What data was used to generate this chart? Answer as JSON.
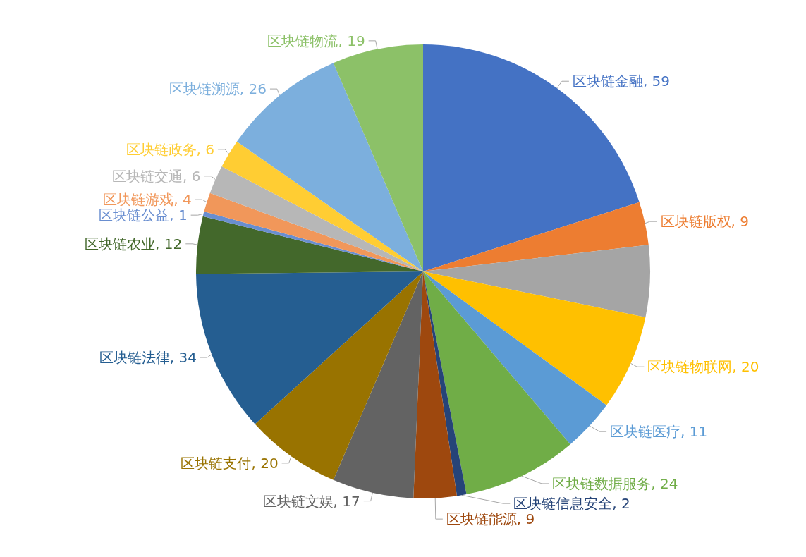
{
  "chart_data": {
    "type": "pie",
    "categories": [
      "区块链金融",
      "区块链版权",
      null,
      "区块链物联网",
      "区块链医疗",
      "区块链数据服务",
      "区块链信息安全",
      "区块链能源",
      "区块链文娱",
      "区块链支付",
      "区块链法律",
      "区块链农业",
      "区块链公益",
      "区块链游戏",
      "区块链交通",
      "区块链政务",
      "区块链溯源",
      "区块链物流"
    ],
    "values": [
      59,
      9,
      15,
      20,
      11,
      24,
      2,
      9,
      17,
      20,
      34,
      12,
      1,
      4,
      6,
      6,
      26,
      19
    ],
    "value_labels": [
      "59",
      "9",
      null,
      "20",
      "11",
      "24",
      "2",
      "9",
      "17",
      "20",
      "34",
      "12",
      "1",
      "4",
      "6",
      "6",
      "26",
      "19"
    ],
    "colors": [
      "#4472c4",
      "#ed7d31",
      "#a5a5a5",
      "#ffc000",
      "#5b9bd5",
      "#70ad47",
      "#264478",
      "#9e480e",
      "#636363",
      "#997300",
      "#255e91",
      "#43682b",
      "#698ed0",
      "#f1975a",
      "#b7b7b7",
      "#ffcd33",
      "#7cafdd",
      "#8cc168"
    ],
    "legend": false
  }
}
